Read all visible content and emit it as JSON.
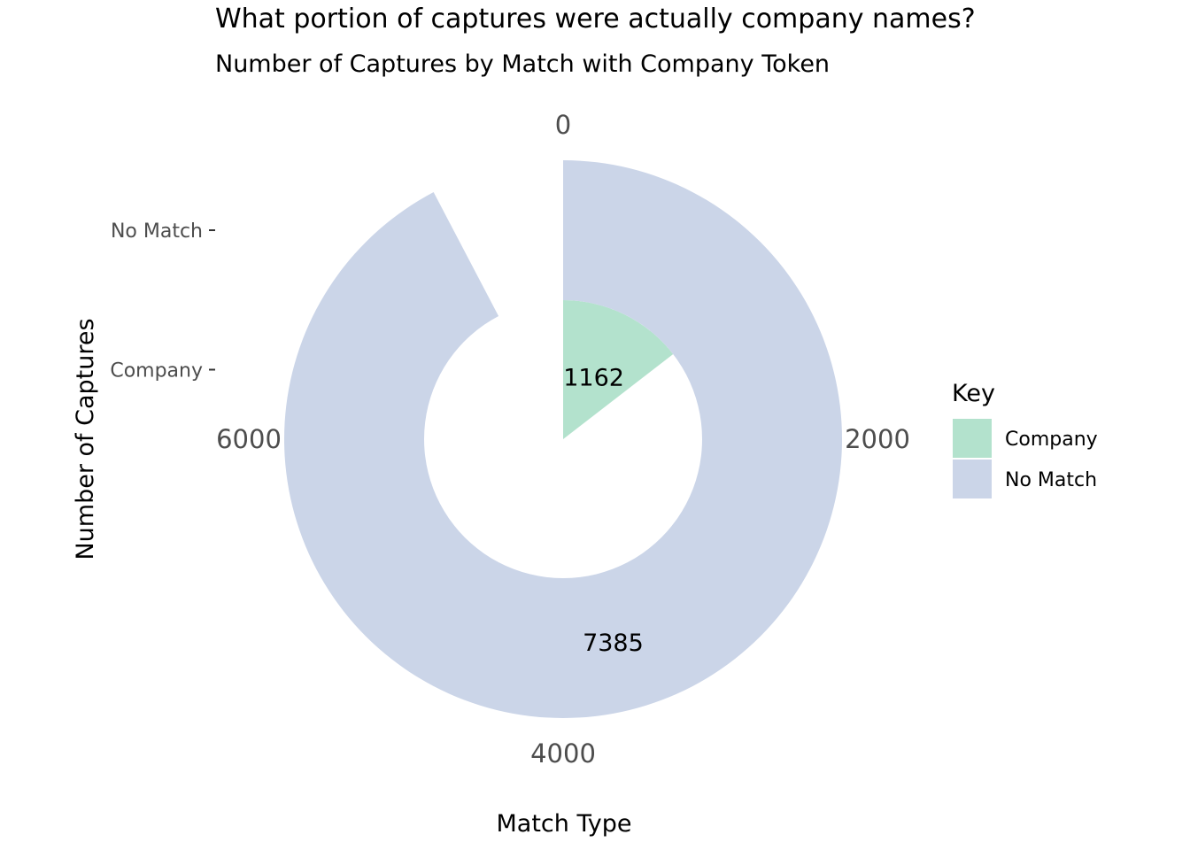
{
  "chart_data": {
    "type": "pie",
    "title": "What portion of captures were actually company names?",
    "subtitle": "Number of Captures by Match with Company Token",
    "xlabel": "Match Type",
    "ylabel": "Number of Captures",
    "categories": [
      "Company",
      "No Match"
    ],
    "values": [
      1162,
      7385
    ],
    "colors": [
      "#b3e2cd",
      "#cbd5e8"
    ],
    "y_tick_labels": [
      "No Match",
      "Company"
    ],
    "radial_ticks": [
      0,
      2000,
      4000,
      6000
    ],
    "legend": {
      "title": "Key",
      "entries": [
        "Company",
        "No Match"
      ],
      "position": "right"
    }
  }
}
